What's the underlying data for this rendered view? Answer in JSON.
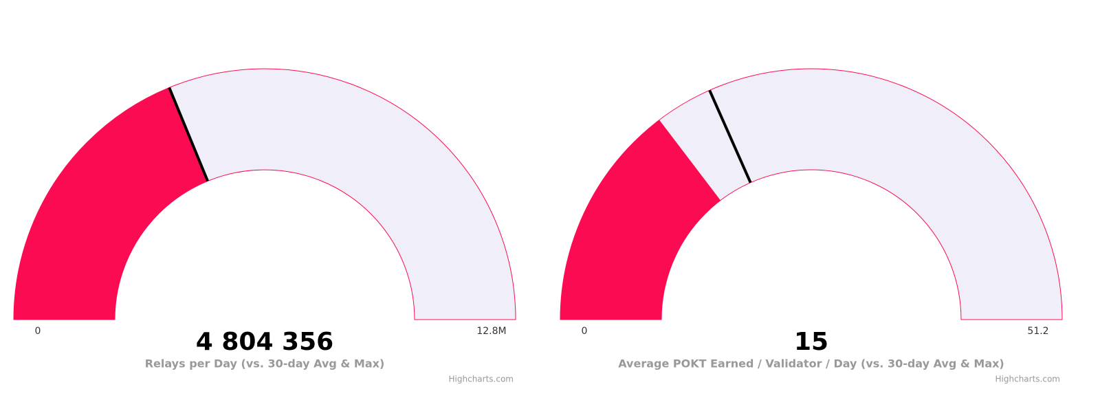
{
  "chart_data": [
    {
      "type": "gauge",
      "value": 4804356,
      "value_label": "4 804 356",
      "title": "Relays per Day (vs. 30-day Avg & Max)",
      "marker_value": 4810000,
      "ylim": [
        0,
        12800000
      ],
      "yticks": [
        0,
        {
          "value": 12800000,
          "label": "12.8M"
        }
      ],
      "color": "#fb0c52",
      "track_color": "#f0eef9",
      "marker_color": "#000000",
      "credits": "Highcharts.com"
    },
    {
      "type": "gauge",
      "value": 15,
      "title": "Average POKT Earned / Validator / Day (vs. 30-day Avg & Max)",
      "marker_value": 18.8,
      "ylim": [
        0,
        51.2
      ],
      "yticks": [
        0,
        51.2
      ],
      "color": "#fb0c52",
      "track_color": "#f0eef9",
      "marker_color": "#000000",
      "credits": "Highcharts.com"
    }
  ]
}
